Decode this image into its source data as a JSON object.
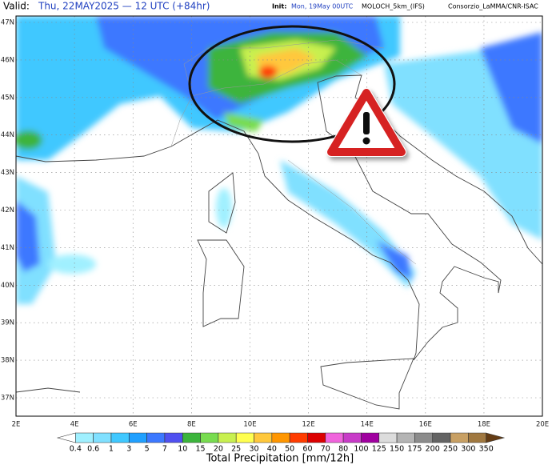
{
  "header": {
    "valid_label": "Valid:",
    "valid_time": "Thu, 22MAY2025 — 12 UTC (+84hr)",
    "init_label": "Init:",
    "init_time": "Mon, 19May 00UTC",
    "model": "MOLOCH_5km_(IFS)",
    "credit": "Consorzio_LaMMA/CNR-ISAC"
  },
  "map": {
    "lat_ticks": [
      {
        "value": 47,
        "label": "47N"
      },
      {
        "value": 46,
        "label": "46N"
      },
      {
        "value": 45,
        "label": "45N"
      },
      {
        "value": 44,
        "label": "44N"
      },
      {
        "value": 43,
        "label": "43N"
      },
      {
        "value": 42,
        "label": "42N"
      },
      {
        "value": 41,
        "label": "41N"
      },
      {
        "value": 40,
        "label": "40N"
      },
      {
        "value": 39,
        "label": "39N"
      },
      {
        "value": 38,
        "label": "38N"
      },
      {
        "value": 37,
        "label": "37N"
      }
    ],
    "lon_ticks": [
      {
        "value": 2,
        "label": "2E"
      },
      {
        "value": 4,
        "label": "4E"
      },
      {
        "value": 6,
        "label": "6E"
      },
      {
        "value": 8,
        "label": "8E"
      },
      {
        "value": 10,
        "label": "10E"
      },
      {
        "value": 12,
        "label": "12E"
      },
      {
        "value": 14,
        "label": "14E"
      },
      {
        "value": 16,
        "label": "16E"
      },
      {
        "value": 18,
        "label": "18E"
      },
      {
        "value": 20,
        "label": "20E"
      }
    ]
  },
  "colorbar": {
    "title": "Total Precipitation [mm/12h]",
    "levels": [
      0.4,
      0.6,
      1,
      3,
      5,
      7,
      10,
      15,
      20,
      25,
      30,
      40,
      50,
      60,
      70,
      80,
      100,
      125,
      150,
      175,
      200,
      250,
      300,
      350
    ],
    "colors": [
      "#ffffff",
      "#a0f0ff",
      "#80e0ff",
      "#40c8ff",
      "#20a0ff",
      "#3c78ff",
      "#5050f0",
      "#3cb43c",
      "#78dc50",
      "#c8f050",
      "#ffff50",
      "#ffc83c",
      "#ff9600",
      "#ff3c00",
      "#dc0000",
      "#f064dc",
      "#c83cc8",
      "#a000a0",
      "#dcdcdc",
      "#b4b4b4",
      "#8c8c8c",
      "#646464",
      "#c8a064",
      "#a07840",
      "#643c14"
    ]
  }
}
